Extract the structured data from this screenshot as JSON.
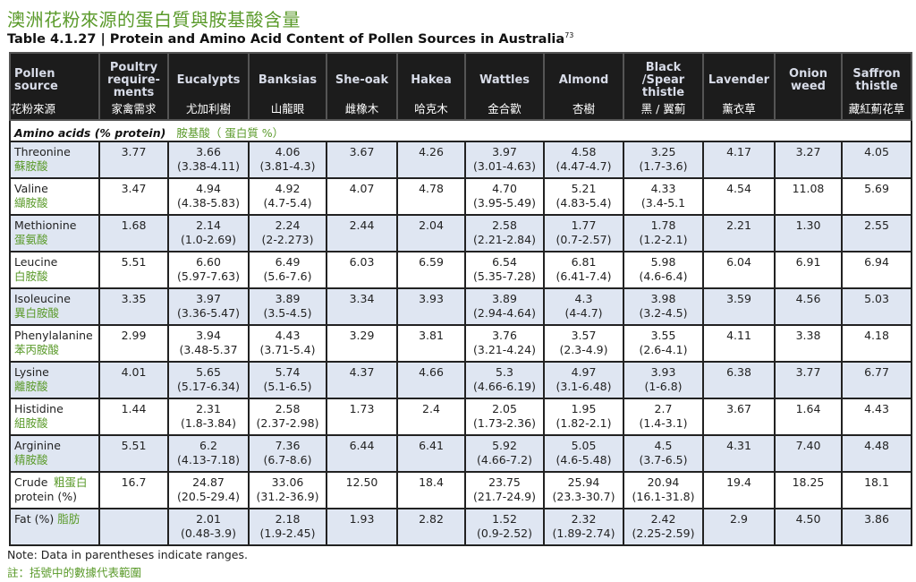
{
  "title_zh": "澳洲花粉來源的蛋白質與胺基酸含量",
  "title_en": "Table 4.1.27 | Protein and Amino Acid Content of Pollen Sources in Australia",
  "title_ref": "73",
  "columns": [
    {
      "en": "Pollen source",
      "zh": "花粉來源"
    },
    {
      "en": "Poultry require-ments",
      "zh": "家禽需求"
    },
    {
      "en": "Eucalypts",
      "zh": "尤加利樹"
    },
    {
      "en": "Banksias",
      "zh": "山龍眼"
    },
    {
      "en": "She-oak",
      "zh": "雌橡木"
    },
    {
      "en": "Hakea",
      "zh": "哈克木"
    },
    {
      "en": "Wattles",
      "zh": "金合歡"
    },
    {
      "en": "Almond",
      "zh": "杏樹"
    },
    {
      "en": "Black /Spear thistle",
      "zh": "黑 / 翼薊"
    },
    {
      "en": "Lavender",
      "zh": "薰衣草"
    },
    {
      "en": "Onion weed",
      "zh": ""
    },
    {
      "en": "Saffron thistle",
      "zh": "藏紅薊花草"
    }
  ],
  "section": {
    "en": "Amino acids (% protein)",
    "zh": "胺基酸（ 蛋白質 %）"
  },
  "rows": [
    {
      "en": "Threonine",
      "zh": "蘇胺酸",
      "cells": [
        [
          "3.77",
          ""
        ],
        [
          "3.66",
          "(3.38-4.11)"
        ],
        [
          "4.06",
          "(3.81-4.3)"
        ],
        [
          "3.67",
          ""
        ],
        [
          "4.26",
          ""
        ],
        [
          "3.97",
          "(3.01-4.63)"
        ],
        [
          "4.58",
          "(4.47-4.7)"
        ],
        [
          "3.25",
          "(1.7-3.6)"
        ],
        [
          "4.17",
          ""
        ],
        [
          "3.27",
          ""
        ],
        [
          "4.05",
          ""
        ]
      ]
    },
    {
      "en": "Valine",
      "zh": "纈胺酸",
      "cells": [
        [
          "3.47",
          ""
        ],
        [
          "4.94",
          "(4.38-5.83)"
        ],
        [
          "4.92",
          "(4.7-5.4)"
        ],
        [
          "4.07",
          ""
        ],
        [
          "4.78",
          ""
        ],
        [
          "4.70",
          "(3.95-5.49)"
        ],
        [
          "5.21",
          "(4.83-5.4)"
        ],
        [
          "4.33",
          "(3.4-5.1"
        ],
        [
          "4.54",
          ""
        ],
        [
          "11.08",
          ""
        ],
        [
          "5.69",
          ""
        ]
      ]
    },
    {
      "en": "Methionine",
      "zh": "蛋氨酸",
      "cells": [
        [
          "1.68",
          ""
        ],
        [
          "2.14",
          "(1.0-2.69)"
        ],
        [
          "2.24",
          "(2-2.273)"
        ],
        [
          "2.44",
          ""
        ],
        [
          "2.04",
          ""
        ],
        [
          "2.58",
          "(2.21-2.84)"
        ],
        [
          "1.77",
          "(0.7-2.57)"
        ],
        [
          "1.78",
          "(1.2-2.1)"
        ],
        [
          "2.21",
          ""
        ],
        [
          "1.30",
          ""
        ],
        [
          "2.55",
          ""
        ]
      ]
    },
    {
      "en": "Leucine",
      "zh": "白胺酸",
      "cells": [
        [
          "5.51",
          ""
        ],
        [
          "6.60",
          "(5.97-7.63)"
        ],
        [
          "6.49",
          "(5.6-7.6)"
        ],
        [
          "6.03",
          ""
        ],
        [
          "6.59",
          ""
        ],
        [
          "6.54",
          "(5.35-7.28)"
        ],
        [
          "6.81",
          "(6.41-7.4)"
        ],
        [
          "5.98",
          "(4.6-6.4)"
        ],
        [
          "6.04",
          ""
        ],
        [
          "6.91",
          ""
        ],
        [
          "6.94",
          ""
        ]
      ]
    },
    {
      "en": "Isoleucine",
      "zh": "異白胺酸",
      "cells": [
        [
          "3.35",
          ""
        ],
        [
          "3.97",
          "(3.36-5.47)"
        ],
        [
          "3.89",
          "(3.5-4.5)"
        ],
        [
          "3.34",
          ""
        ],
        [
          "3.93",
          ""
        ],
        [
          "3.89",
          "(2.94-4.64)"
        ],
        [
          "4.3",
          "(4-4.7)"
        ],
        [
          "3.98",
          "(3.2-4.5)"
        ],
        [
          "3.59",
          ""
        ],
        [
          "4.56",
          ""
        ],
        [
          "5.03",
          ""
        ]
      ]
    },
    {
      "en": "Phenylalanine",
      "zh": "苯丙胺酸",
      "cells": [
        [
          "2.99",
          ""
        ],
        [
          "3.94",
          "(3.48-5.37"
        ],
        [
          "4.43",
          "(3.71-5.4)"
        ],
        [
          "3.29",
          ""
        ],
        [
          "3.81",
          ""
        ],
        [
          "3.76",
          "(3.21-4.24)"
        ],
        [
          "3.57",
          "(2.3-4.9)"
        ],
        [
          "3.55",
          "(2.6-4.1)"
        ],
        [
          "4.11",
          ""
        ],
        [
          "3.38",
          ""
        ],
        [
          "4.18",
          ""
        ]
      ]
    },
    {
      "en": "Lysine",
      "zh": "離胺酸",
      "cells": [
        [
          "4.01",
          ""
        ],
        [
          "5.65",
          "(5.17-6.34)"
        ],
        [
          "5.74",
          "(5.1-6.5)"
        ],
        [
          "4.37",
          ""
        ],
        [
          "4.66",
          ""
        ],
        [
          "5.3",
          "(4.66-6.19)"
        ],
        [
          "4.97",
          "(3.1-6.48)"
        ],
        [
          "3.93",
          "(1-6.8)"
        ],
        [
          "6.38",
          ""
        ],
        [
          "3.77",
          ""
        ],
        [
          "6.77",
          ""
        ]
      ]
    },
    {
      "en": "Histidine",
      "zh": "組胺酸",
      "cells": [
        [
          "1.44",
          ""
        ],
        [
          "2.31",
          "(1.8-3.84)"
        ],
        [
          "2.58",
          "(2.37-2.98)"
        ],
        [
          "1.73",
          ""
        ],
        [
          "2.4",
          ""
        ],
        [
          "2.05",
          "(1.73-2.36)"
        ],
        [
          "1.95",
          "(1.82-2.1)"
        ],
        [
          "2.7",
          "(1.4-3.1)"
        ],
        [
          "3.67",
          ""
        ],
        [
          "1.64",
          ""
        ],
        [
          "4.43",
          ""
        ]
      ]
    },
    {
      "en": "Arginine",
      "zh": "精胺酸",
      "cells": [
        [
          "5.51",
          ""
        ],
        [
          "6.2",
          "(4.13-7.18)"
        ],
        [
          "7.36",
          "(6.7-8.6)"
        ],
        [
          "6.44",
          ""
        ],
        [
          "6.41",
          ""
        ],
        [
          "5.92",
          "(4.66-7.2)"
        ],
        [
          "5.05",
          "(4.6-5.48)"
        ],
        [
          "4.5",
          "(3.7-6.5)"
        ],
        [
          "4.31",
          ""
        ],
        [
          "7.40",
          ""
        ],
        [
          "4.48",
          ""
        ]
      ]
    },
    {
      "en": "Crude protein (%)",
      "zh": "粗蛋白",
      "cells": [
        [
          "16.7",
          ""
        ],
        [
          "24.87",
          "(20.5-29.4)"
        ],
        [
          "33.06",
          "(31.2-36.9)"
        ],
        [
          "12.50",
          ""
        ],
        [
          "18.4",
          ""
        ],
        [
          "23.75",
          "(21.7-24.9)"
        ],
        [
          "25.94",
          "(23.3-30.7)"
        ],
        [
          "20.94",
          "(16.1-31.8)"
        ],
        [
          "19.4",
          ""
        ],
        [
          "18.25",
          ""
        ],
        [
          "18.1",
          ""
        ]
      ]
    },
    {
      "en": "Fat (%)",
      "zh": "脂肪",
      "cells": [
        [
          "",
          ""
        ],
        [
          "2.01",
          "(0.48-3.9)"
        ],
        [
          "2.18",
          "(1.9-2.45)"
        ],
        [
          "1.93",
          ""
        ],
        [
          "2.82",
          ""
        ],
        [
          "1.52",
          "(0.9-2.52)"
        ],
        [
          "2.32",
          "(1.89-2.74)"
        ],
        [
          "2.42",
          "(2.25-2.59)"
        ],
        [
          "2.9",
          ""
        ],
        [
          "4.50",
          ""
        ],
        [
          "3.86",
          ""
        ]
      ]
    }
  ],
  "note_en": "Note: Data in parentheses indicate ranges.",
  "note_zh": "註：括號中的數據代表範圍"
}
